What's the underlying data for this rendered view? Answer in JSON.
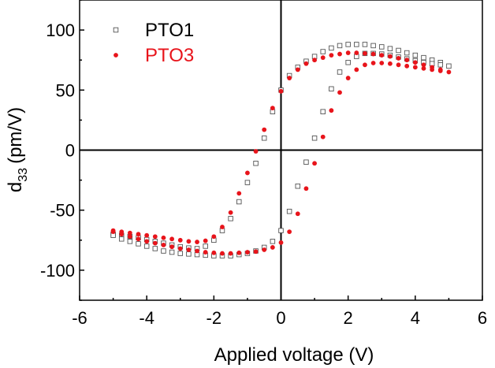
{
  "chart_data": {
    "type": "scatter",
    "title": "",
    "xlabel": "Applied voltage (V)",
    "ylabel_main": "d",
    "ylabel_subscript": "33",
    "ylabel_units": "(pm/V)",
    "xlim": [
      -6,
      6
    ],
    "ylim": [
      -125,
      125
    ],
    "xticks": [
      -6,
      -4,
      -2,
      0,
      2,
      4,
      6
    ],
    "xtick_labels": [
      "-6",
      "-4",
      "-2",
      "0",
      "2",
      "4",
      "6"
    ],
    "yticks": [
      -100,
      -50,
      0,
      50,
      100
    ],
    "ytick_labels": [
      "-100",
      "-50",
      "0",
      "50",
      "100"
    ],
    "grid": false,
    "zero_lines": true,
    "legend_position": "top-left",
    "series": [
      {
        "name": "PTO1",
        "marker": "open-square",
        "color": "#555555",
        "points": [
          [
            -5.0,
            -70
          ],
          [
            -4.75,
            -71
          ],
          [
            -4.5,
            -72
          ],
          [
            -4.25,
            -73
          ],
          [
            -4.0,
            -74.5
          ],
          [
            -3.75,
            -76
          ],
          [
            -3.5,
            -77.5
          ],
          [
            -3.25,
            -79
          ],
          [
            -3.0,
            -80.5
          ],
          [
            -2.75,
            -81.5
          ],
          [
            -2.5,
            -82
          ],
          [
            -2.25,
            -80
          ],
          [
            -2.0,
            -75
          ],
          [
            -1.75,
            -67
          ],
          [
            -1.5,
            -57
          ],
          [
            -1.25,
            -43
          ],
          [
            -1.0,
            -27
          ],
          [
            -0.75,
            -11
          ],
          [
            -0.5,
            10
          ],
          [
            -0.25,
            32
          ],
          [
            0.0,
            50
          ],
          [
            0.25,
            62
          ],
          [
            0.5,
            69
          ],
          [
            0.75,
            74
          ],
          [
            1.0,
            78
          ],
          [
            1.25,
            82
          ],
          [
            1.5,
            85
          ],
          [
            1.75,
            87
          ],
          [
            2.0,
            88
          ],
          [
            2.25,
            88
          ],
          [
            2.5,
            88
          ],
          [
            2.75,
            87
          ],
          [
            3.0,
            86
          ],
          [
            3.25,
            84.5
          ],
          [
            3.5,
            83
          ],
          [
            3.75,
            81
          ],
          [
            4.0,
            79
          ],
          [
            4.25,
            77
          ],
          [
            4.5,
            75
          ],
          [
            4.75,
            73
          ],
          [
            5.0,
            70
          ],
          [
            4.75,
            71
          ],
          [
            4.5,
            72
          ],
          [
            4.25,
            73
          ],
          [
            4.0,
            74.5
          ],
          [
            3.75,
            76
          ],
          [
            3.5,
            77.5
          ],
          [
            3.25,
            79
          ],
          [
            3.0,
            80
          ],
          [
            2.75,
            80.5
          ],
          [
            2.5,
            80.5
          ],
          [
            2.25,
            78
          ],
          [
            2.0,
            73
          ],
          [
            1.75,
            65
          ],
          [
            1.5,
            51
          ],
          [
            1.25,
            32
          ],
          [
            1.0,
            10
          ],
          [
            0.75,
            -10
          ],
          [
            0.5,
            -30
          ],
          [
            0.25,
            -51
          ],
          [
            0.0,
            -67
          ],
          [
            -0.25,
            -76
          ],
          [
            -0.5,
            -81
          ],
          [
            -0.75,
            -84
          ],
          [
            -1.0,
            -86
          ],
          [
            -1.25,
            -87
          ],
          [
            -1.5,
            -88
          ],
          [
            -1.75,
            -88
          ],
          [
            -2.0,
            -88
          ],
          [
            -2.25,
            -87.5
          ],
          [
            -2.5,
            -87
          ],
          [
            -2.75,
            -86.5
          ],
          [
            -3.0,
            -86
          ],
          [
            -3.25,
            -85
          ],
          [
            -3.5,
            -84
          ],
          [
            -3.75,
            -82
          ],
          [
            -4.0,
            -80
          ],
          [
            -4.25,
            -78
          ],
          [
            -4.5,
            -76
          ],
          [
            -4.75,
            -74
          ],
          [
            -5.0,
            -71
          ]
        ]
      },
      {
        "name": "PTO3",
        "marker": "filled-circle",
        "color": "#e8141b",
        "points": [
          [
            -5.0,
            -67
          ],
          [
            -4.75,
            -68
          ],
          [
            -4.5,
            -69
          ],
          [
            -4.25,
            -70
          ],
          [
            -4.0,
            -71
          ],
          [
            -3.75,
            -72
          ],
          [
            -3.5,
            -73
          ],
          [
            -3.25,
            -74
          ],
          [
            -3.0,
            -75
          ],
          [
            -2.75,
            -76
          ],
          [
            -2.5,
            -76.5
          ],
          [
            -2.25,
            -75.5
          ],
          [
            -2.0,
            -72
          ],
          [
            -1.75,
            -64
          ],
          [
            -1.5,
            -52
          ],
          [
            -1.25,
            -36
          ],
          [
            -1.0,
            -19
          ],
          [
            -0.75,
            -1
          ],
          [
            -0.5,
            17
          ],
          [
            -0.25,
            35
          ],
          [
            0.0,
            49
          ],
          [
            0.25,
            60
          ],
          [
            0.5,
            67
          ],
          [
            0.75,
            72
          ],
          [
            1.0,
            75
          ],
          [
            1.25,
            77
          ],
          [
            1.5,
            79
          ],
          [
            1.75,
            80
          ],
          [
            2.0,
            81
          ],
          [
            2.25,
            81
          ],
          [
            2.5,
            80.5
          ],
          [
            2.75,
            80
          ],
          [
            3.0,
            79
          ],
          [
            3.25,
            78
          ],
          [
            3.5,
            76.5
          ],
          [
            3.75,
            75
          ],
          [
            4.0,
            73
          ],
          [
            4.25,
            71
          ],
          [
            4.5,
            69
          ],
          [
            4.75,
            67
          ],
          [
            5.0,
            65
          ],
          [
            4.75,
            66
          ],
          [
            4.5,
            67
          ],
          [
            4.25,
            68
          ],
          [
            4.0,
            69
          ],
          [
            3.75,
            70
          ],
          [
            3.5,
            71
          ],
          [
            3.25,
            72
          ],
          [
            3.0,
            72.5
          ],
          [
            2.75,
            72.5
          ],
          [
            2.5,
            71
          ],
          [
            2.25,
            67
          ],
          [
            2.0,
            60
          ],
          [
            1.75,
            48
          ],
          [
            1.5,
            33
          ],
          [
            1.25,
            11
          ],
          [
            1.0,
            -11
          ],
          [
            0.75,
            -32
          ],
          [
            0.5,
            -53
          ],
          [
            0.25,
            -68
          ],
          [
            0.0,
            -77
          ],
          [
            -0.25,
            -81
          ],
          [
            -0.5,
            -83
          ],
          [
            -0.75,
            -84.5
          ],
          [
            -1.0,
            -85
          ],
          [
            -1.25,
            -85.5
          ],
          [
            -1.5,
            -86
          ],
          [
            -1.75,
            -86
          ],
          [
            -2.0,
            -85.5
          ],
          [
            -2.25,
            -85
          ],
          [
            -2.5,
            -84
          ],
          [
            -2.75,
            -83
          ],
          [
            -3.0,
            -82
          ],
          [
            -3.25,
            -80.5
          ],
          [
            -3.5,
            -79
          ],
          [
            -3.75,
            -77.5
          ],
          [
            -4.0,
            -76
          ],
          [
            -4.25,
            -74
          ],
          [
            -4.5,
            -72
          ],
          [
            -4.75,
            -70
          ],
          [
            -5.0,
            -68
          ]
        ]
      }
    ]
  }
}
